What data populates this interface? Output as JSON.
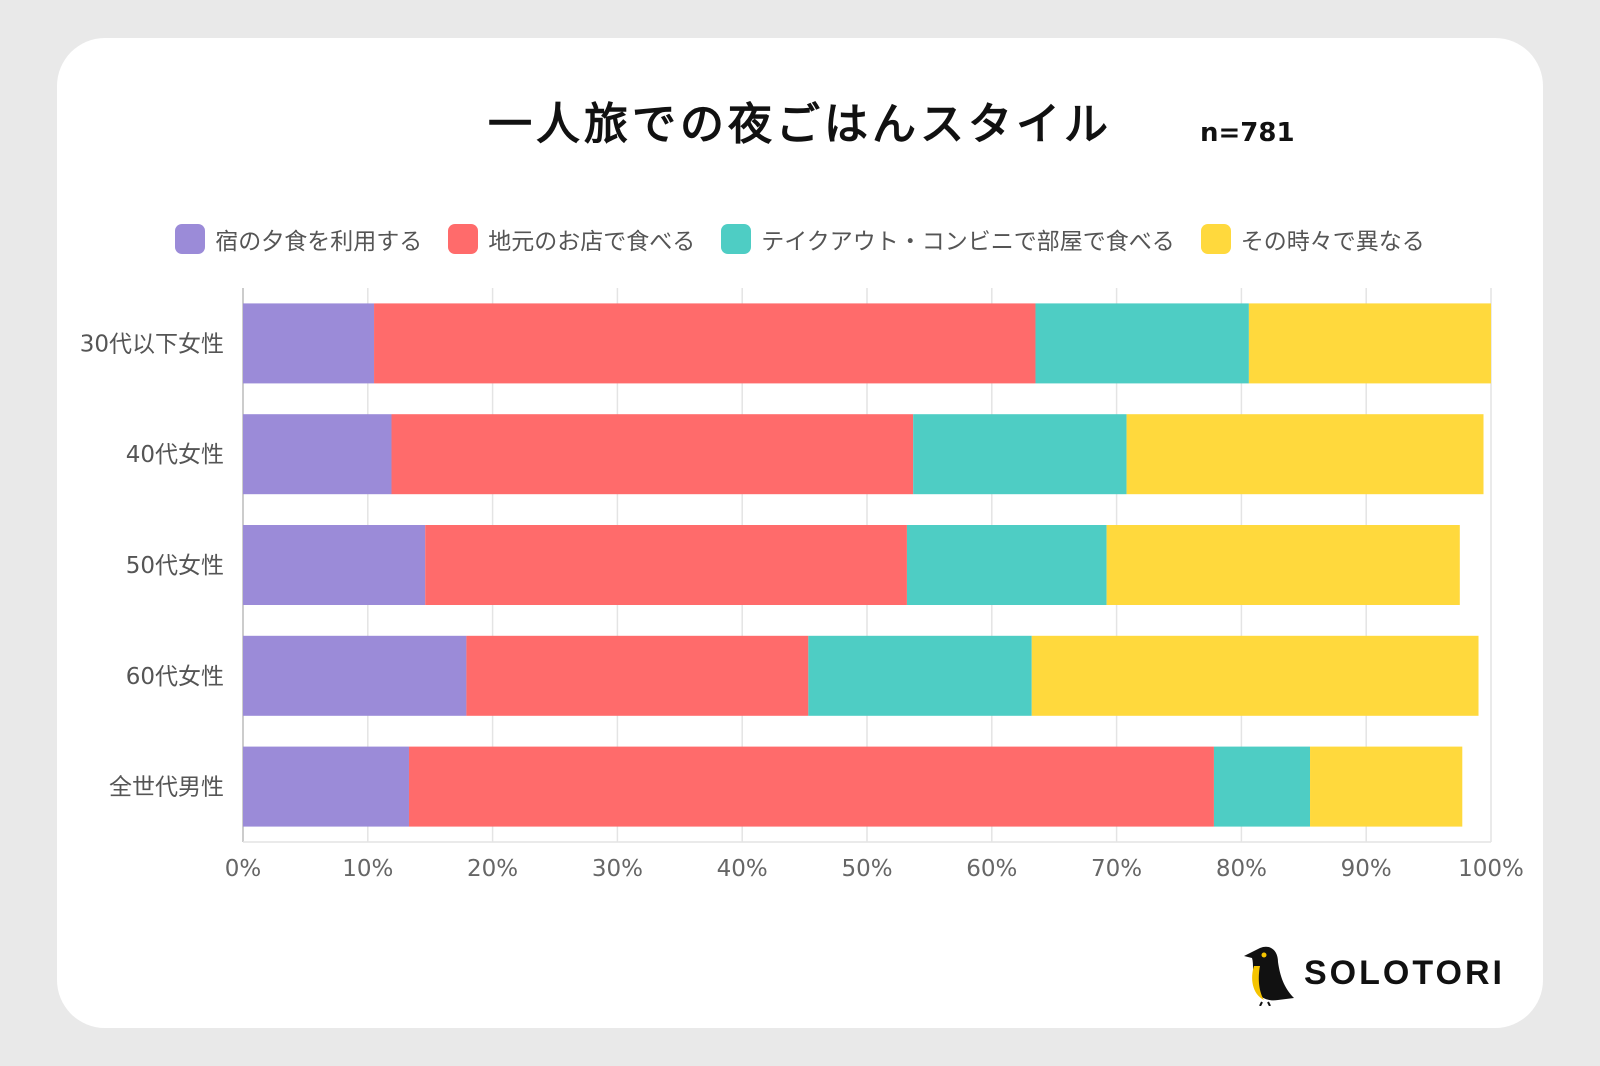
{
  "chart_data": {
    "type": "bar",
    "orientation": "horizontal",
    "stacked": true,
    "title": "一人旅での夜ごはんスタイル",
    "subtitle": "n=781",
    "categories": [
      "30代以下女性",
      "40代女性",
      "50代女性",
      "60代女性",
      "全世代男性"
    ],
    "series": [
      {
        "name": "宿の夕食を利用する",
        "color": "#9b8bd8",
        "values": [
          10.5,
          11.9,
          14.6,
          17.9,
          13.3
        ]
      },
      {
        "name": "地元のお店で食べる",
        "color": "#ff6b6b",
        "values": [
          53.0,
          41.8,
          38.6,
          27.4,
          64.5
        ]
      },
      {
        "name": "テイクアウト・コンビニで部屋で食べる",
        "color": "#4ecdc4",
        "values": [
          17.1,
          17.1,
          16.0,
          17.9,
          7.7
        ]
      },
      {
        "name": "その時々で異なる",
        "color": "#ffd93d",
        "values": [
          19.4,
          28.6,
          28.3,
          35.8,
          12.2
        ]
      }
    ],
    "xlim": [
      0,
      100
    ],
    "xticks": [
      "0%",
      "10%",
      "20%",
      "30%",
      "40%",
      "50%",
      "60%",
      "70%",
      "80%",
      "90%",
      "100%"
    ],
    "grid": true,
    "legend_position": "top"
  },
  "brand": {
    "logo_text": "SOLOTORI"
  }
}
